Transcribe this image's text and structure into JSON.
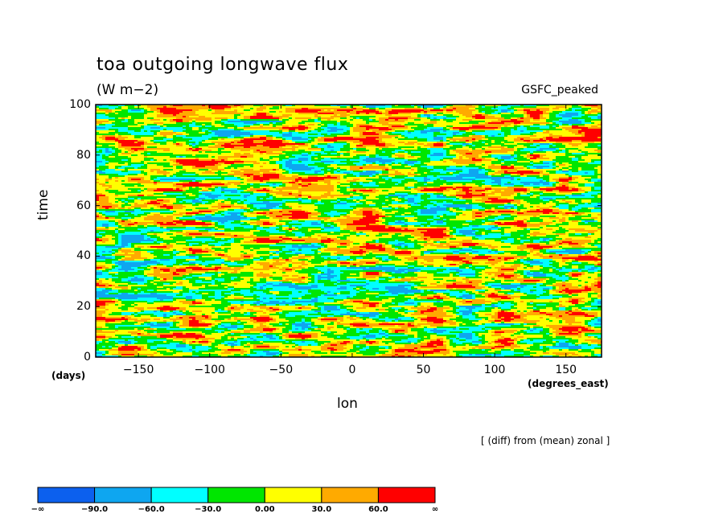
{
  "chart_data": {
    "type": "heatmap",
    "title": "toa outgoing longwave flux",
    "units": "(W m−2)",
    "model_label": "GSFC_peaked",
    "xlabel": "lon",
    "ylabel": "time",
    "x_unit": "(degrees_east)",
    "y_unit": "(days)",
    "xlim": [
      -180,
      175
    ],
    "ylim": [
      0,
      100
    ],
    "x_ticks": [
      "−150",
      "−100",
      "−50",
      "0",
      "50",
      "100",
      "150"
    ],
    "x_tick_values": [
      -150,
      -100,
      -50,
      0,
      50,
      100,
      150
    ],
    "y_ticks": [
      "0",
      "20",
      "40",
      "60",
      "80",
      "100"
    ],
    "y_tick_values": [
      0,
      20,
      40,
      60,
      80,
      100
    ],
    "note": "[ (diff) from (mean) zonal ]",
    "colorbar": {
      "labels": [
        "−∞",
        "−90.0",
        "−60.0",
        "−30.0",
        "0.00",
        "30.0",
        "60.0",
        "∞"
      ],
      "colors": [
        "#0c60ee",
        "#0ea6f0",
        "#00ffff",
        "#00e600",
        "#ffff00",
        "#ffaa00",
        "#ff0000"
      ]
    }
  }
}
